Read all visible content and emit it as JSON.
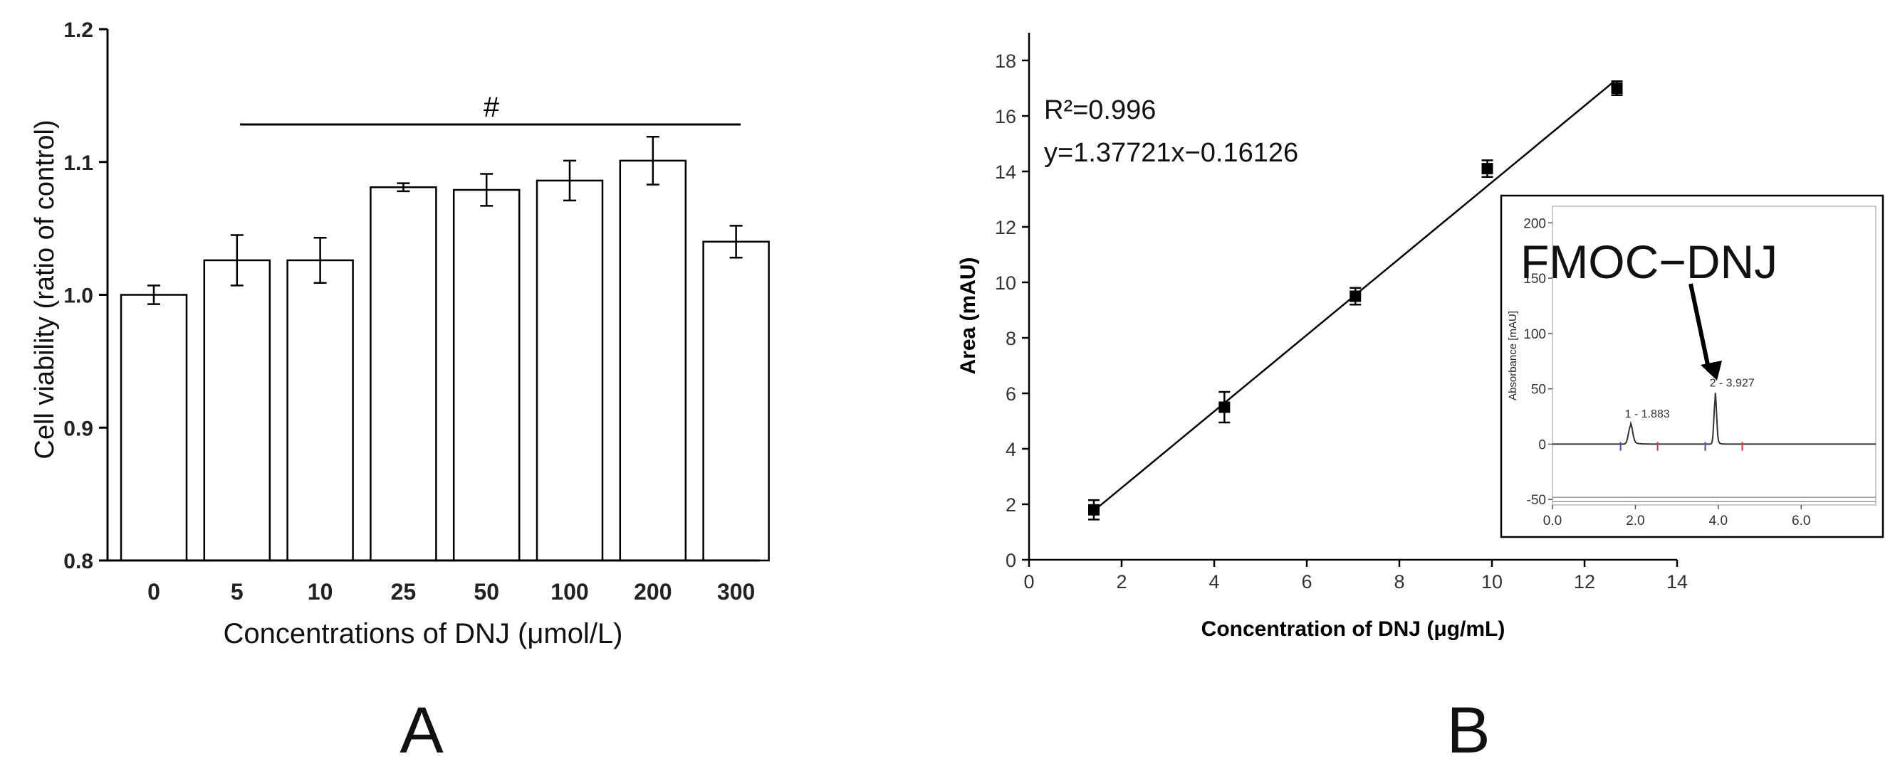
{
  "chart_data": [
    {
      "panel_label": "A",
      "type": "bar",
      "xlabel": "Concentrations of DNJ (μmol/L)",
      "ylabel": "Cell viability (ratio of control)",
      "ylim": [
        0.8,
        1.2
      ],
      "yticks": [
        "0.8",
        "0.9",
        "1.0",
        "1.1",
        "1.2"
      ],
      "categories": [
        "0",
        "5",
        "10",
        "25",
        "50",
        "100",
        "200",
        "300"
      ],
      "values": [
        1.0,
        1.026,
        1.026,
        1.081,
        1.079,
        1.086,
        1.101,
        1.04
      ],
      "errors": [
        0.007,
        0.019,
        0.017,
        0.003,
        0.012,
        0.015,
        0.018,
        0.012
      ],
      "annotation": "#",
      "grid": false
    },
    {
      "panel_label": "B",
      "type": "scatter",
      "xlabel": "Concentration of DNJ (μg/mL)",
      "ylabel": "Area (mAU)",
      "xlim": [
        0,
        14
      ],
      "ylim": [
        0,
        19
      ],
      "xticks": [
        "0",
        "2",
        "4",
        "6",
        "8",
        "10",
        "12",
        "14"
      ],
      "yticks": [
        "0",
        "2",
        "4",
        "6",
        "8",
        "10",
        "12",
        "14",
        "16",
        "18"
      ],
      "x": [
        1.4,
        4.22,
        7.05,
        9.9,
        12.7
      ],
      "y": [
        1.8,
        5.5,
        9.5,
        14.1,
        17.0
      ],
      "errors": [
        0.35,
        0.55,
        0.3,
        0.3,
        0.25
      ],
      "fit_line": {
        "x": [
          1.3,
          12.65
        ],
        "y": [
          1.63,
          17.26
        ]
      },
      "annotations": [
        "R²=0.996",
        "y=1.37721x−0.16126"
      ],
      "grid": false,
      "inset": {
        "type": "line",
        "ylabel": "Absorbance [mAU]",
        "xlim": [
          0,
          7.8
        ],
        "ylim": [
          -55,
          215
        ],
        "xticks": [
          "0.0",
          "2.0",
          "4.0",
          "6.0"
        ],
        "yticks": [
          "-50",
          "0",
          "50",
          "100",
          "150",
          "200"
        ],
        "peaks": [
          {
            "label": "1 - 1.883",
            "x": 1.883,
            "height": 19
          },
          {
            "label": "2 - 3.927",
            "x": 3.927,
            "height": 47
          }
        ],
        "callout": "FMOC−DNJ"
      }
    }
  ]
}
